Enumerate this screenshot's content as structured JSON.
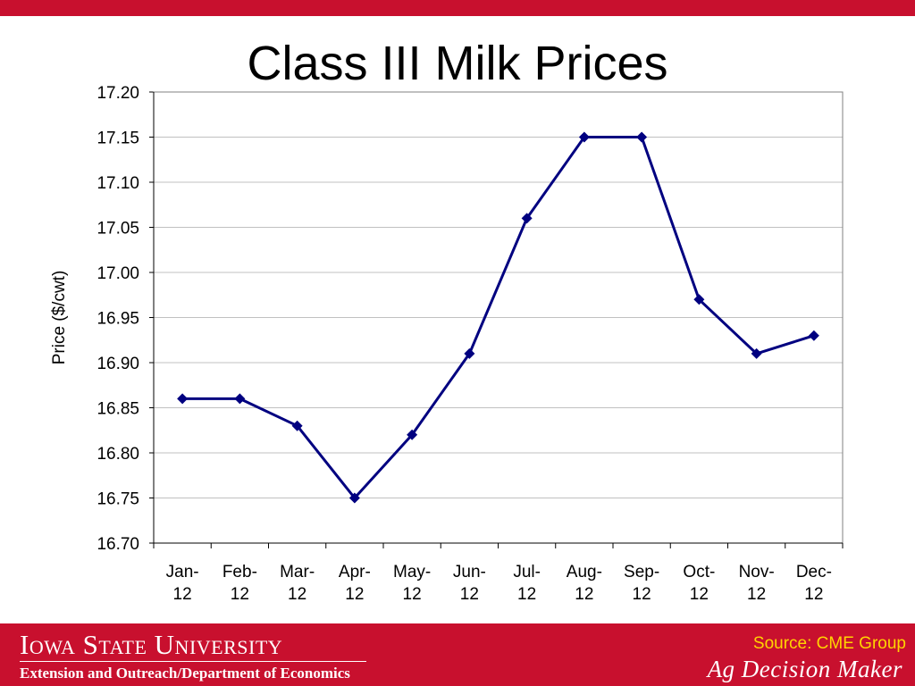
{
  "colors": {
    "accent_red": "#c8102e",
    "series_line": "#000080",
    "source_text": "#ffd400",
    "grid": "#c0c0c0"
  },
  "slide": {
    "title": "Class III Milk Prices"
  },
  "chart_data": {
    "type": "line",
    "title": "",
    "xlabel": "",
    "ylabel": "Price ($/cwt)",
    "ylim": [
      16.7,
      17.2
    ],
    "ytick_step": 0.05,
    "yticks": [
      "16.70",
      "16.75",
      "16.80",
      "16.85",
      "16.90",
      "16.95",
      "17.00",
      "17.05",
      "17.10",
      "17.15",
      "17.20"
    ],
    "grid": true,
    "legend": "none",
    "marker": "diamond",
    "categories": [
      [
        "Jan-",
        "12"
      ],
      [
        "Feb-",
        "12"
      ],
      [
        "Mar-",
        "12"
      ],
      [
        "Apr-",
        "12"
      ],
      [
        "May-",
        "12"
      ],
      [
        "Jun-",
        "12"
      ],
      [
        "Jul-",
        "12"
      ],
      [
        "Aug-",
        "12"
      ],
      [
        "Sep-",
        "12"
      ],
      [
        "Oct-",
        "12"
      ],
      [
        "Nov-",
        "12"
      ],
      [
        "Dec-",
        "12"
      ]
    ],
    "series": [
      {
        "values": [
          16.86,
          16.86,
          16.83,
          16.75,
          16.82,
          16.91,
          17.06,
          17.15,
          17.15,
          16.97,
          16.91,
          16.93
        ]
      }
    ]
  },
  "footer": {
    "university": "Iowa State University",
    "department": "Extension and Outreach/Department of Economics",
    "source": "Source: CME Group",
    "brand": "Ag Decision Maker"
  }
}
